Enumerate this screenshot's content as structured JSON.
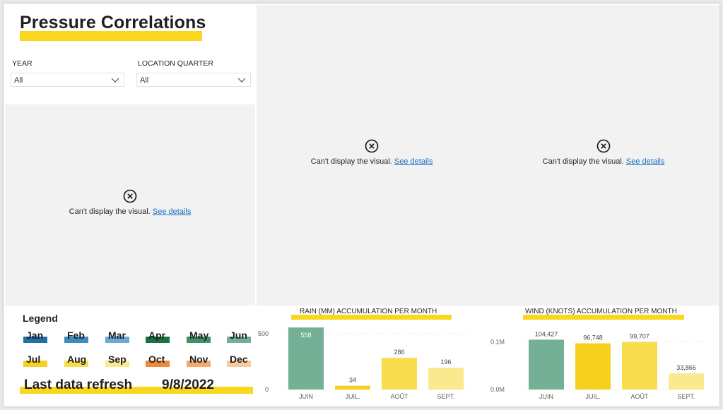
{
  "page": {
    "title": "Pressure Correlations"
  },
  "filters": [
    {
      "label": "YEAR",
      "value": "All"
    },
    {
      "label": "LOCATION QUARTER",
      "value": "All"
    }
  ],
  "visual_errors": [
    {
      "message": "Can't display the visual.",
      "link": "See details"
    },
    {
      "message": "Can't display the visual.",
      "link": "See details"
    },
    {
      "message": "Can't display the visual.",
      "link": "See details"
    }
  ],
  "legend": {
    "title": "Legend",
    "months": [
      {
        "label": "Jan",
        "color": "#1f6fa8"
      },
      {
        "label": "Feb",
        "color": "#3d8cc4"
      },
      {
        "label": "Mar",
        "color": "#6aaad6"
      },
      {
        "label": "Apr",
        "color": "#1a7340"
      },
      {
        "label": "May",
        "color": "#3a9463"
      },
      {
        "label": "Jun",
        "color": "#74b096"
      },
      {
        "label": "Jul",
        "color": "#f5d01f"
      },
      {
        "label": "Aug",
        "color": "#f8de4f"
      },
      {
        "label": "Sep",
        "color": "#fbe98e"
      },
      {
        "label": "Oct",
        "color": "#f0883a"
      },
      {
        "label": "Nov",
        "color": "#f6a76c"
      },
      {
        "label": "Dec",
        "color": "#f9c9a0"
      }
    ]
  },
  "refresh": {
    "label": "Last data refresh",
    "date": "9/8/2022"
  },
  "chart_data": [
    {
      "type": "bar",
      "title": "RAIN (MM) ACCUMULATION PER MONTH",
      "categories": [
        "JUIN",
        "JUIL.",
        "AOÛT",
        "SEPT."
      ],
      "values": [
        558,
        34,
        286,
        196
      ],
      "data_labels": [
        "558",
        "34",
        "286",
        "196"
      ],
      "colors": [
        "#74b096",
        "#f5d01f",
        "#f8de4f",
        "#fbe98e"
      ],
      "ylim": [
        0,
        558
      ],
      "yticks": [
        0,
        500
      ],
      "ytick_labels": [
        "0",
        "500"
      ],
      "grid": true
    },
    {
      "type": "bar",
      "title": "WIND (KNOTS) ACCUMULATION PER MONTH",
      "categories": [
        "JUIN",
        "JUIL.",
        "AOÛT",
        "SEPT."
      ],
      "values": [
        104427,
        96748,
        99707,
        33866
      ],
      "data_labels": [
        "104,427",
        "96,748",
        "99,707",
        "33,866"
      ],
      "colors": [
        "#74b096",
        "#f5d01f",
        "#f8de4f",
        "#fbe98e"
      ],
      "ylim": [
        0,
        130000
      ],
      "yticks": [
        0,
        100000
      ],
      "ytick_labels": [
        "0.0M",
        "0.1M"
      ],
      "grid": true
    }
  ]
}
